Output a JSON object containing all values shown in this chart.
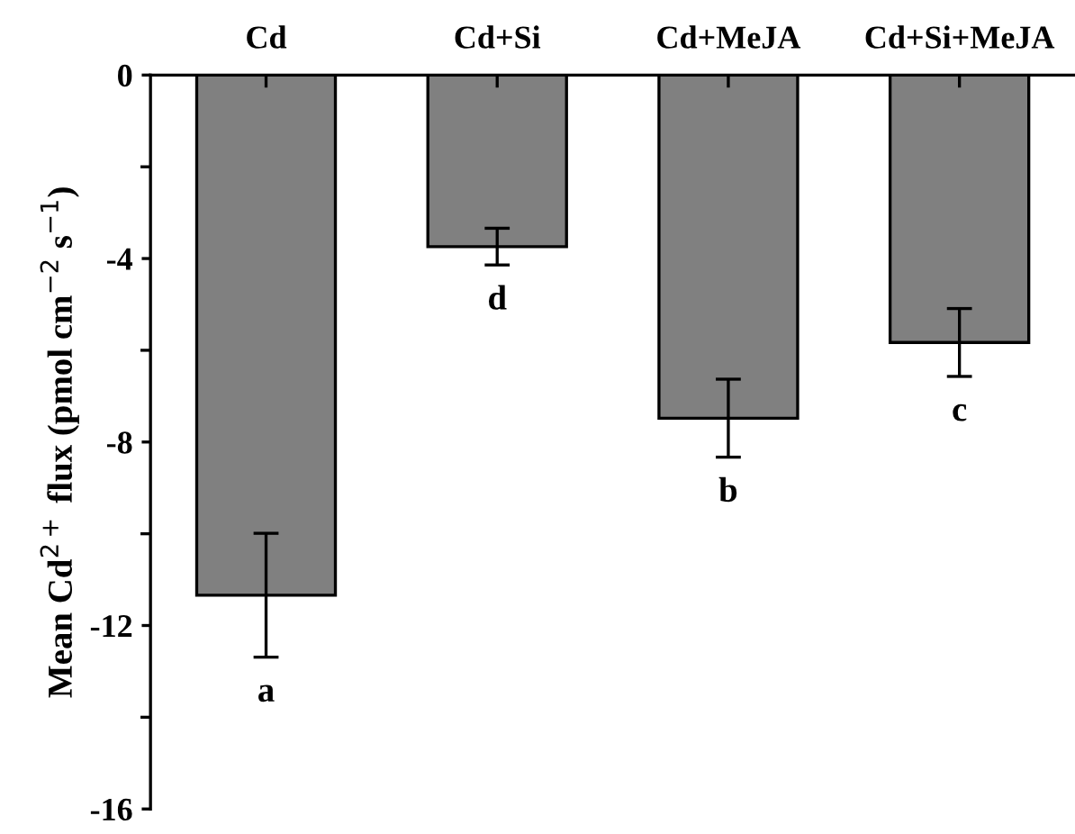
{
  "chart_data": {
    "type": "bar",
    "ylabel": "Mean Cd$^{2+}$ flux (pmol cm$^{−2}$ s$^{−1}$)",
    "categories": [
      "Cd",
      "Cd+Si",
      "Cd+MeJA",
      "Cd+Si+MeJA"
    ],
    "values": [
      -11.34,
      -3.74,
      -7.48,
      -5.83
    ],
    "errors": [
      1.35,
      0.4,
      0.85,
      0.74
    ],
    "color": "#808080",
    "ylim": [
      -16,
      0
    ],
    "yticks": [
      0,
      -4,
      -8,
      -12,
      -16
    ],
    "grid": false,
    "annotations": [
      "a",
      "d",
      "b",
      "c"
    ]
  }
}
